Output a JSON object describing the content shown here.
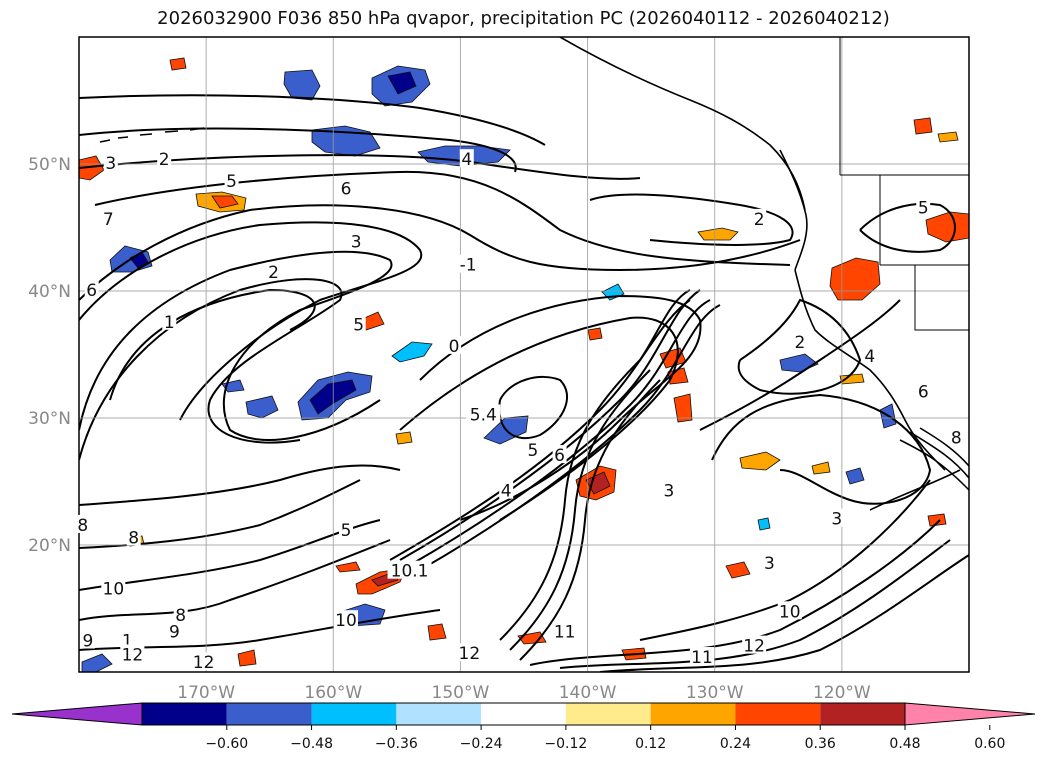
{
  "title": "2026032900 F036 850 hPa qvapor, precipitation PC (2026040112 - 2026040212)",
  "map": {
    "lon_range": [
      -180,
      -110
    ],
    "lat_range": [
      10,
      60
    ],
    "lat_ticks": [
      {
        "value": 20,
        "label": "20°N"
      },
      {
        "value": 30,
        "label": "30°N"
      },
      {
        "value": 40,
        "label": "40°N"
      },
      {
        "value": 50,
        "label": "50°N"
      }
    ],
    "lon_ticks": [
      {
        "value": -170,
        "label": "170°W"
      },
      {
        "value": -160,
        "label": "160°W"
      },
      {
        "value": -150,
        "label": "150°W"
      },
      {
        "value": -140,
        "label": "140°W"
      },
      {
        "value": -130,
        "label": "130°W"
      },
      {
        "value": -120,
        "label": "120°W"
      }
    ],
    "grid": true
  },
  "colorbar": {
    "extend": "both",
    "colors": [
      "#9932cc",
      "#00008b",
      "#3a5fcd",
      "#00bfff",
      "#b0e2ff",
      "#ffffff",
      "#ffeb8b",
      "#ffa500",
      "#ff4500",
      "#b22222",
      "#ff82ab"
    ],
    "ticks": [
      "−0.60",
      "−0.48",
      "−0.36",
      "−0.24",
      "−0.12",
      "0.12",
      "0.24",
      "0.36",
      "0.48",
      "0.60"
    ]
  },
  "contour_labels": [
    {
      "text": "3",
      "lon": -177.5,
      "lat": 50.0
    },
    {
      "text": "2",
      "lon": -173.3,
      "lat": 50.3
    },
    {
      "text": "5",
      "lon": -168.0,
      "lat": 48.6
    },
    {
      "text": "6",
      "lon": -159.0,
      "lat": 48.0
    },
    {
      "text": "4",
      "lon": -149.5,
      "lat": 50.3
    },
    {
      "text": "7",
      "lon": -177.7,
      "lat": 45.6
    },
    {
      "text": "3",
      "lon": -158.2,
      "lat": 43.8
    },
    {
      "text": "2",
      "lon": -164.7,
      "lat": 41.4
    },
    {
      "text": "1",
      "lon": -172.9,
      "lat": 37.5
    },
    {
      "text": "-1",
      "lon": -149.4,
      "lat": 42.0
    },
    {
      "text": "0",
      "lon": -150.5,
      "lat": 35.6
    },
    {
      "text": "5",
      "lon": -158.0,
      "lat": 37.3
    },
    {
      "text": "2",
      "lon": -126.5,
      "lat": 45.6
    },
    {
      "text": "5",
      "lon": -113.6,
      "lat": 46.5
    },
    {
      "text": "2",
      "lon": -123.3,
      "lat": 35.9
    },
    {
      "text": "4",
      "lon": -117.8,
      "lat": 34.8
    },
    {
      "text": "6",
      "lon": -179.0,
      "lat": 40.0
    },
    {
      "text": "5.4",
      "lon": -148.2,
      "lat": 30.2
    },
    {
      "text": "5",
      "lon": -144.3,
      "lat": 27.4
    },
    {
      "text": "6",
      "lon": -142.2,
      "lat": 27.0
    },
    {
      "text": "4",
      "lon": -146.4,
      "lat": 24.2
    },
    {
      "text": "3",
      "lon": -133.6,
      "lat": 24.2
    },
    {
      "text": "6",
      "lon": -113.6,
      "lat": 32.0
    },
    {
      "text": "8",
      "lon": -111.0,
      "lat": 28.4
    },
    {
      "text": "3",
      "lon": -120.4,
      "lat": 22.0
    },
    {
      "text": "3",
      "lon": -125.7,
      "lat": 18.5
    },
    {
      "text": "5",
      "lon": -159.0,
      "lat": 21.1
    },
    {
      "text": "8",
      "lon": -179.7,
      "lat": 21.5
    },
    {
      "text": "8",
      "lon": -175.7,
      "lat": 20.5
    },
    {
      "text": "10",
      "lon": -177.3,
      "lat": 16.5
    },
    {
      "text": "8",
      "lon": -172.0,
      "lat": 14.4
    },
    {
      "text": "9",
      "lon": -172.5,
      "lat": 13.1
    },
    {
      "text": "10",
      "lon": -159.0,
      "lat": 14.0
    },
    {
      "text": "10.1",
      "lon": -154.0,
      "lat": 17.9
    },
    {
      "text": "9",
      "lon": -179.3,
      "lat": 12.4
    },
    {
      "text": "1",
      "lon": -176.2,
      "lat": 12.4
    },
    {
      "text": "12",
      "lon": -175.8,
      "lat": 11.3
    },
    {
      "text": "12",
      "lon": -170.2,
      "lat": 10.7
    },
    {
      "text": "11",
      "lon": -141.8,
      "lat": 13.1
    },
    {
      "text": "12",
      "lon": -149.3,
      "lat": 11.4
    },
    {
      "text": "11",
      "lon": -131.0,
      "lat": 11.1
    },
    {
      "text": "12",
      "lon": -126.9,
      "lat": 12.0
    },
    {
      "text": "10",
      "lon": -124.1,
      "lat": 14.7
    }
  ]
}
